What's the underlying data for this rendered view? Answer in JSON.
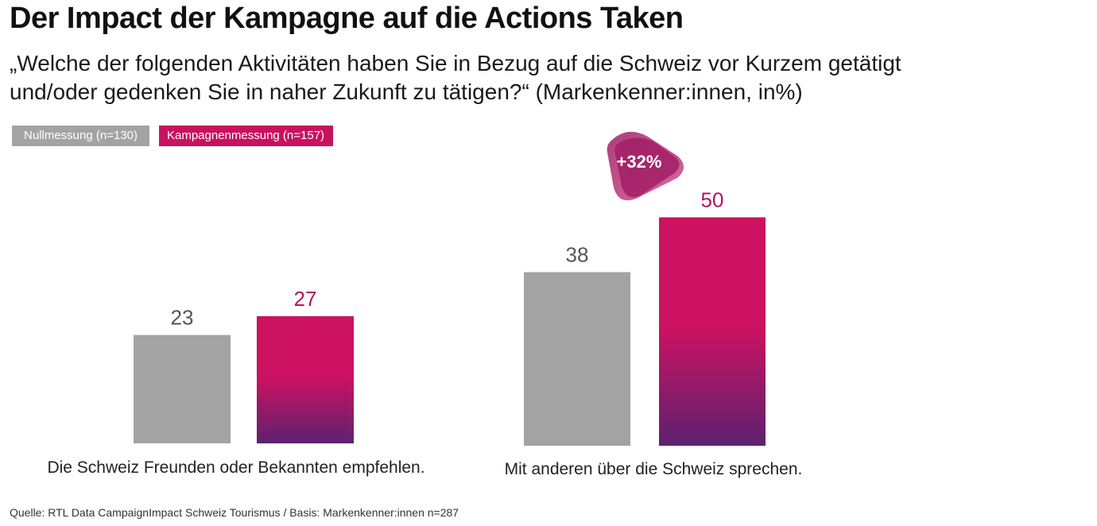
{
  "title": "Der Impact der Kampagne auf die Actions Taken",
  "subtitle": "„Welche der folgenden Aktivitäten haben Sie in Bezug auf die Schweiz vor Kurzem getätigt und/oder gedenken Sie in naher Zukunft zu tätigen?“ (Markenkenner:innen, in%)",
  "legend": {
    "null": "Nullmessung (n=130)",
    "kampagne": "Kampagnenmessung (n=157)"
  },
  "badge": "+32%",
  "source": "Quelle: RTL Data CampaignImpact Schweiz Tourismus  /  Basis: Markenkenner:innen n=287",
  "colors": {
    "null": "#a3a3a3",
    "kampagne_top": "#cc1261",
    "kampagne_bottom": "#5c2270",
    "value_null": "#555555",
    "value_kampagne": "#b5135b",
    "badge_top": "#a01c63",
    "badge_bottom": "#d04e92"
  },
  "chart_data": {
    "type": "bar",
    "categories": [
      "Die Schweiz Freunden oder Bekannten empfehlen.",
      "Mit anderen über die Schweiz sprechen."
    ],
    "series": [
      {
        "name": "Nullmessung (n=130)",
        "values": [
          23,
          38
        ]
      },
      {
        "name": "Kampagnenmessung (n=157)",
        "values": [
          27,
          50
        ]
      }
    ],
    "annotations": [
      {
        "category": "Mit anderen über die Schweiz sprechen.",
        "text": "+32%"
      }
    ]
  }
}
